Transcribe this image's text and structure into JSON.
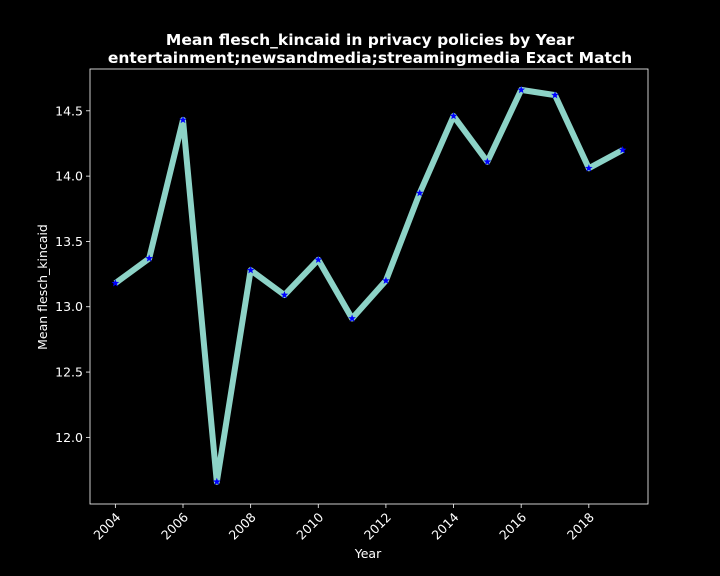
{
  "chart_data": {
    "type": "line",
    "title": "Mean flesch_kincaid in privacy policies by Year",
    "subtitle": "entertainment;newsandmedia;streamingmedia Exact Match",
    "xlabel": "Year",
    "ylabel": "Mean flesch_kincaid",
    "x": [
      2004,
      2005,
      2006,
      2007,
      2008,
      2009,
      2010,
      2011,
      2012,
      2013,
      2014,
      2015,
      2016,
      2017,
      2018,
      2019
    ],
    "series": [
      {
        "values": [
          13.18,
          13.37,
          14.43,
          11.66,
          13.28,
          13.09,
          13.36,
          12.91,
          13.2,
          13.87,
          14.46,
          14.11,
          14.66,
          14.62,
          14.06,
          14.2
        ]
      }
    ],
    "xticks": [
      "2004",
      "2006",
      "2008",
      "2010",
      "2012",
      "2014",
      "2016",
      "2018"
    ],
    "yticks": [
      "12.0",
      "12.5",
      "13.0",
      "13.5",
      "14.0",
      "14.5"
    ],
    "xlim": [
      2003.25,
      2019.75
    ],
    "ylim": [
      11.49,
      14.82
    ],
    "grid": false,
    "legend": "none",
    "line_color": "#8dd3c7",
    "marker_color": "#0000ff",
    "background_color": "#000000",
    "text_color": "#ffffff"
  }
}
